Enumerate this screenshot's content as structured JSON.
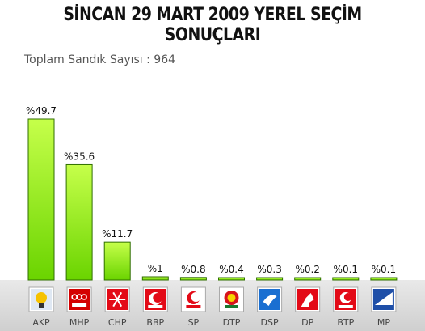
{
  "page": {
    "title": "SİNCAN 29 MART 2009 YEREL SEÇİM SONUÇLARI",
    "subtitle": "Toplam Sandık Sayısı : 964"
  },
  "colors": {
    "bar_top": "#c6ff4a",
    "bar_bottom": "#6ad400",
    "bar_edge": "#2f6e00",
    "tray": "#dcdcdc"
  },
  "chart_data": {
    "type": "bar",
    "categories": [
      "AKP",
      "MHP",
      "CHP",
      "BBP",
      "SP",
      "DTP",
      "DSP",
      "DP",
      "BTP",
      "MP"
    ],
    "values": [
      49.7,
      35.6,
      11.7,
      1,
      0.8,
      0.4,
      0.3,
      0.2,
      0.1,
      0.1
    ],
    "value_labels": [
      "%49.7",
      "%35.6",
      "%11.7",
      "%1",
      "%0.8",
      "%0.4",
      "%0.3",
      "%0.2",
      "%0.1",
      "%0.1"
    ],
    "logos": [
      "akp-bulb-icon",
      "mhp-crescents-icon",
      "chp-arrows-icon",
      "bbp-crescent-icon",
      "sp-crescent-icon",
      "dtp-flower-icon",
      "dsp-dove-icon",
      "dp-horse-icon",
      "btp-crescent-icon",
      "mp-logo-icon"
    ],
    "ylim": [
      0,
      50
    ],
    "grid": false
  }
}
